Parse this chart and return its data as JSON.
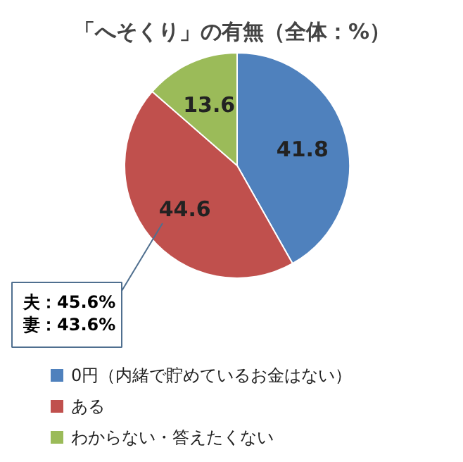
{
  "chart_data": {
    "type": "pie",
    "title": "「へそくり」の有無（全体：%）",
    "categories": [
      "0円（内緒で貯めているお金はない）",
      "ある",
      "わからない・答えたくない"
    ],
    "values": [
      41.8,
      44.6,
      13.6
    ],
    "colors": [
      "#4f81bd",
      "#c0504d",
      "#9bbb59"
    ],
    "data_labels": true,
    "legend": "bottom",
    "annotations": [
      "夫：45.6%",
      "妻：43.6%"
    ]
  }
}
